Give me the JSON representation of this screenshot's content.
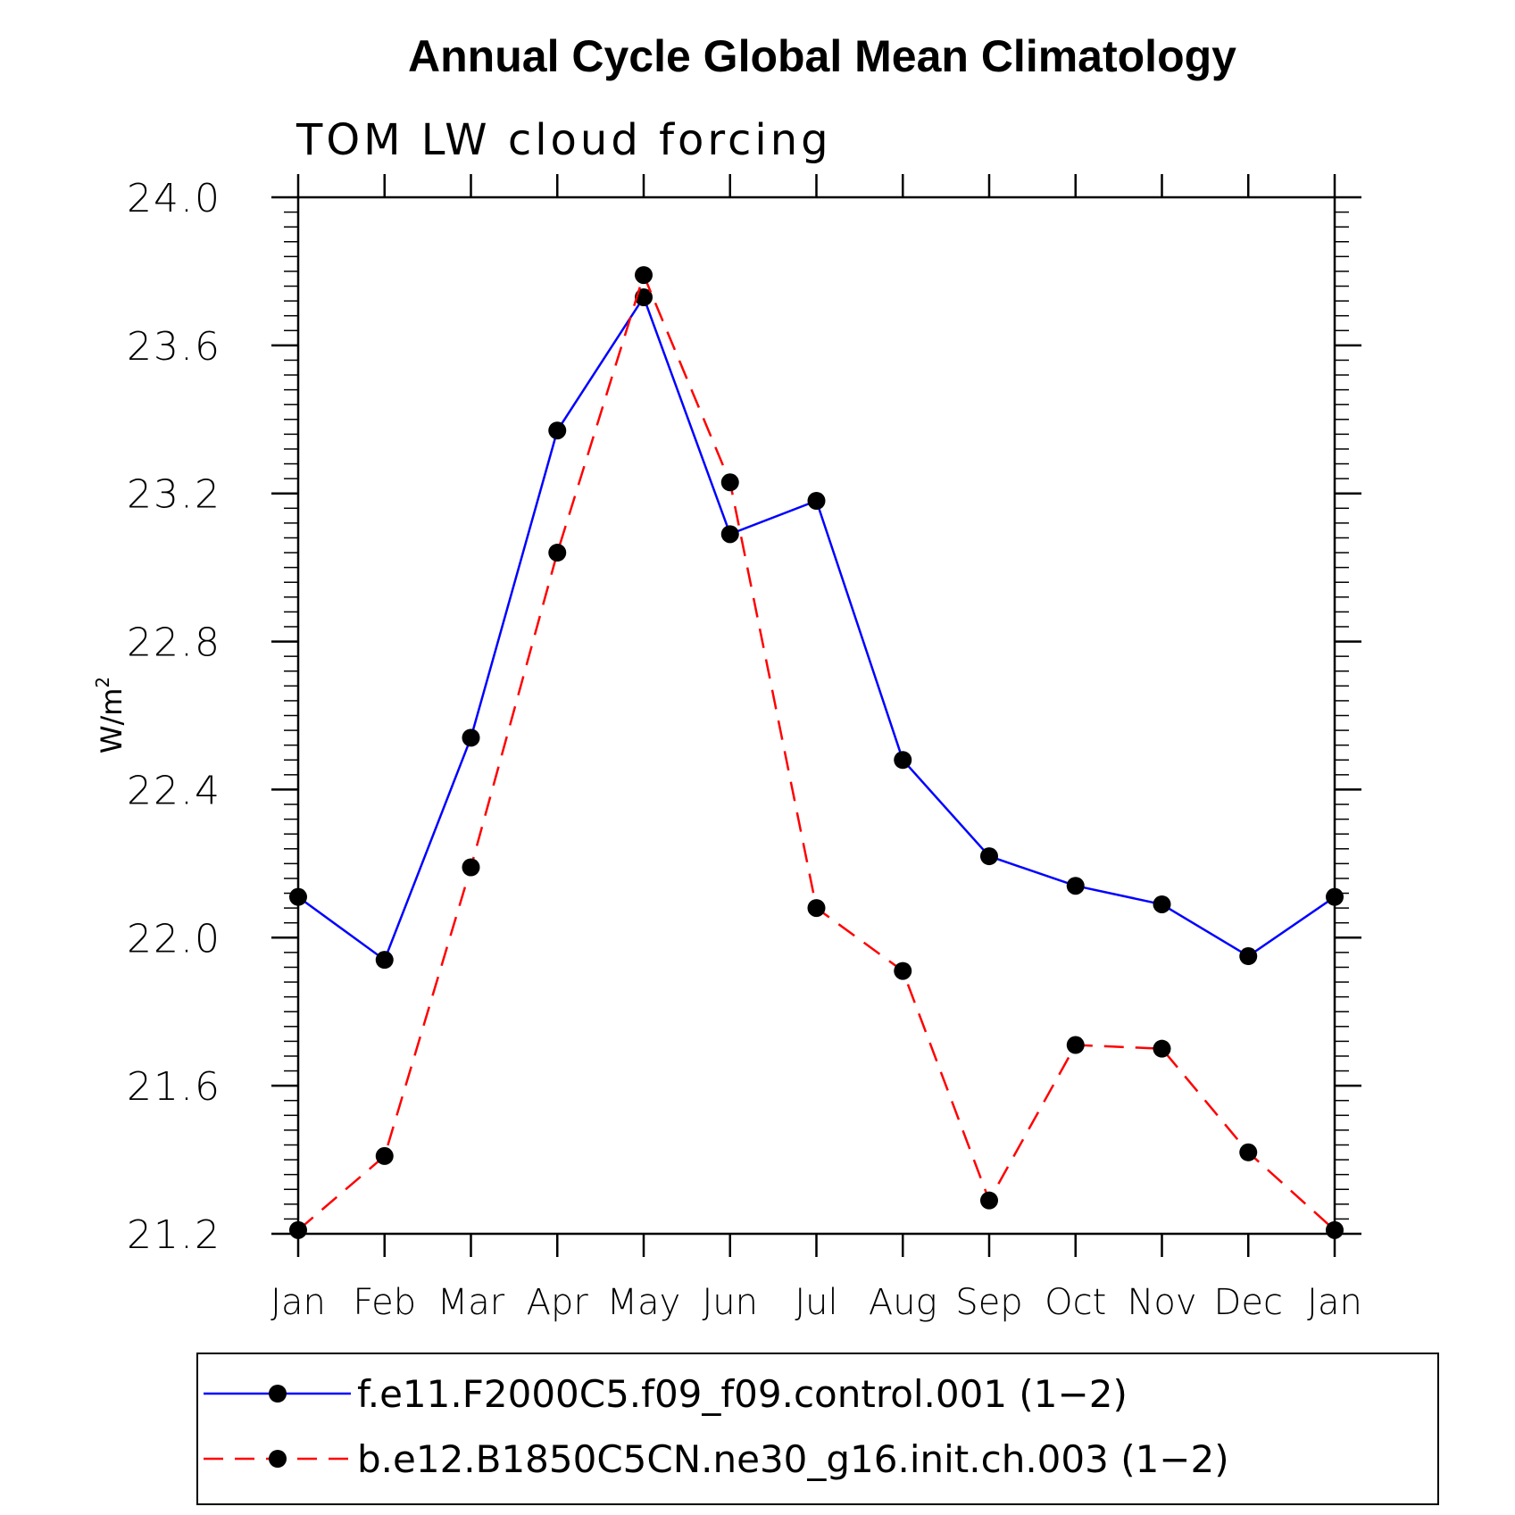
{
  "chart_data": {
    "type": "line",
    "title": "Annual Cycle Global Mean Climatology",
    "subtitle": "TOM LW cloud forcing",
    "ylabel": "W/m",
    "ylabel_superscript": "2",
    "xlabel": "",
    "categories": [
      "Jan",
      "Feb",
      "Mar",
      "Apr",
      "May",
      "Jun",
      "Jul",
      "Aug",
      "Sep",
      "Oct",
      "Nov",
      "Dec",
      "Jan"
    ],
    "ylim": [
      21.2,
      24.0
    ],
    "y_ticks": [
      "21.2",
      "21.6",
      "22.0",
      "22.4",
      "22.8",
      "23.2",
      "23.6",
      "24.0"
    ],
    "y_tick_values": [
      21.2,
      21.6,
      22.0,
      22.4,
      22.8,
      23.2,
      23.6,
      24.0
    ],
    "grid": false,
    "legend_position": "bottom",
    "series": [
      {
        "name": "f.e11.F2000C5.f09_f09.control.001 (1−2)",
        "color": "#0000ff",
        "style": "solid",
        "values": [
          22.11,
          21.94,
          22.54,
          23.37,
          23.73,
          23.09,
          23.18,
          22.48,
          22.22,
          22.14,
          22.09,
          21.95,
          22.11
        ]
      },
      {
        "name": "b.e12.B1850C5CN.ne30_g16.init.ch.003 (1−2)",
        "color": "#ff0000",
        "style": "dashed",
        "values": [
          21.21,
          21.41,
          22.19,
          23.04,
          23.79,
          23.23,
          22.08,
          21.91,
          21.29,
          21.71,
          21.7,
          21.42,
          21.21
        ]
      }
    ]
  }
}
